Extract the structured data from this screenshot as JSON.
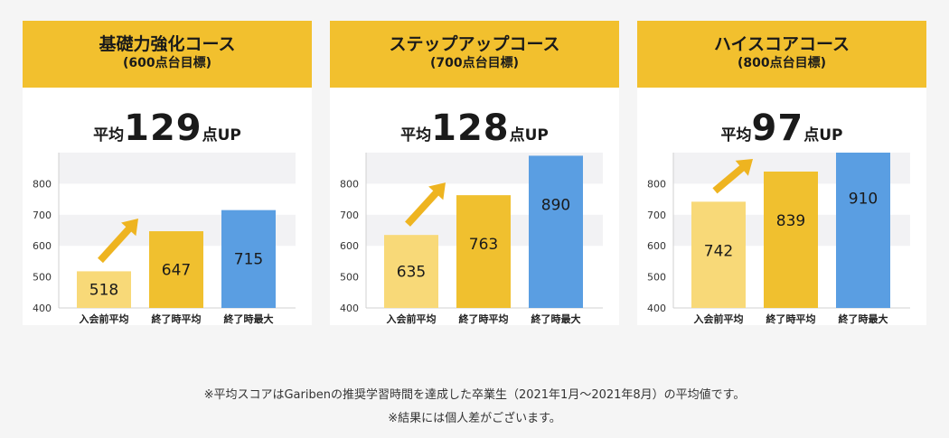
{
  "colors": {
    "header_bg": "#f2c02e",
    "bar_before": "#f8d978",
    "bar_after": "#f0c02f",
    "bar_max": "#5a9ee2",
    "band": "#f2f2f4",
    "arrow": "#eeb420"
  },
  "cards": [
    {
      "name": "基礎力強化コース",
      "target": "(600点台目標)",
      "avg_prefix": "平均",
      "avg_value": "129",
      "avg_unit": "点UP"
    },
    {
      "name": "ステップアップコース",
      "target": "(700点台目標)",
      "avg_prefix": "平均",
      "avg_value": "128",
      "avg_unit": "点UP"
    },
    {
      "name": "ハイスコアコース",
      "target": "(800点台目標)",
      "avg_prefix": "平均",
      "avg_value": "97",
      "avg_unit": "点UP"
    }
  ],
  "chart_data": [
    {
      "type": "bar",
      "title": "基礎力強化コース",
      "categories": [
        "入会前平均",
        "終了時平均",
        "終了時最大"
      ],
      "values": [
        518,
        647,
        715
      ],
      "ylim": [
        400,
        900
      ],
      "yticks": [
        400,
        500,
        600,
        700,
        800
      ]
    },
    {
      "type": "bar",
      "title": "ステップアップコース",
      "categories": [
        "入会前平均",
        "終了時平均",
        "終了時最大"
      ],
      "values": [
        635,
        763,
        890
      ],
      "ylim": [
        400,
        900
      ],
      "yticks": [
        400,
        500,
        600,
        700,
        800
      ]
    },
    {
      "type": "bar",
      "title": "ハイスコアコース",
      "categories": [
        "入会前平均",
        "終了時平均",
        "終了時最大"
      ],
      "values": [
        742,
        839,
        910
      ],
      "ylim": [
        400,
        900
      ],
      "yticks": [
        400,
        500,
        600,
        700,
        800
      ]
    }
  ],
  "footnotes": {
    "line1": "※平均スコアはGaribenの推奨学習時間を達成した卒業生（2021年1月〜2021年8月）の平均値です。",
    "line2": "※結果には個人差がございます。"
  }
}
